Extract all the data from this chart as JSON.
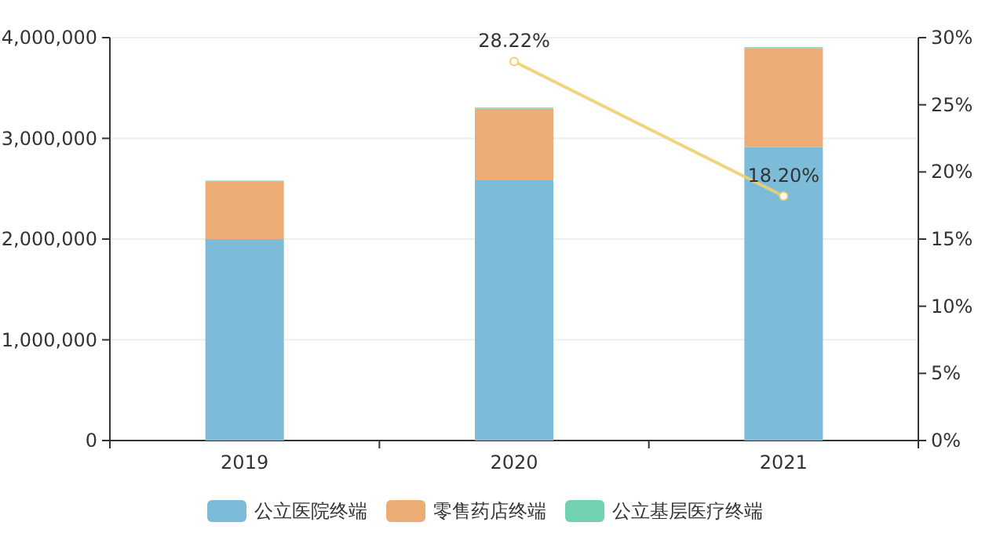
{
  "chart_data": {
    "type": "bar",
    "stacked": true,
    "categories": [
      "2019",
      "2020",
      "2021"
    ],
    "series": [
      {
        "name": "公立医院终端",
        "color": "#7dbcd9",
        "values": [
          2000000,
          2590000,
          2915000
        ]
      },
      {
        "name": "零售药店终端",
        "color": "#edac73",
        "values": [
          570000,
          705000,
          980000
        ]
      },
      {
        "name": "公立基层医疗终端",
        "color": "#72d2b0",
        "values": [
          10000,
          10000,
          10000
        ]
      },
      {
        "type": "line",
        "axis": "y2",
        "color": "#efcf6f",
        "marker": "circle",
        "values": [
          null,
          28.22,
          18.2
        ],
        "value_labels": [
          null,
          "28.22%",
          "18.20%"
        ]
      }
    ],
    "ylim": [
      0,
      4000000
    ],
    "yticks": [
      0,
      {
        "value": 1000000,
        "label": "1,000,000"
      },
      {
        "value": 2000000,
        "label": "2,000,000"
      },
      {
        "value": 3000000,
        "label": "3,000,000"
      },
      {
        "value": 4000000,
        "label": "4,000,000"
      }
    ],
    "y2lim": [
      0,
      30
    ],
    "y2ticks": [
      {
        "value": 0,
        "label": "0%"
      },
      {
        "value": 5,
        "label": "5%"
      },
      {
        "value": 10,
        "label": "10%"
      },
      {
        "value": 15,
        "label": "15%"
      },
      {
        "value": 20,
        "label": "20%"
      },
      {
        "value": 25,
        "label": "25%"
      },
      {
        "value": 30,
        "label": "30%"
      }
    ],
    "grid": "y",
    "legend": "bottom"
  }
}
